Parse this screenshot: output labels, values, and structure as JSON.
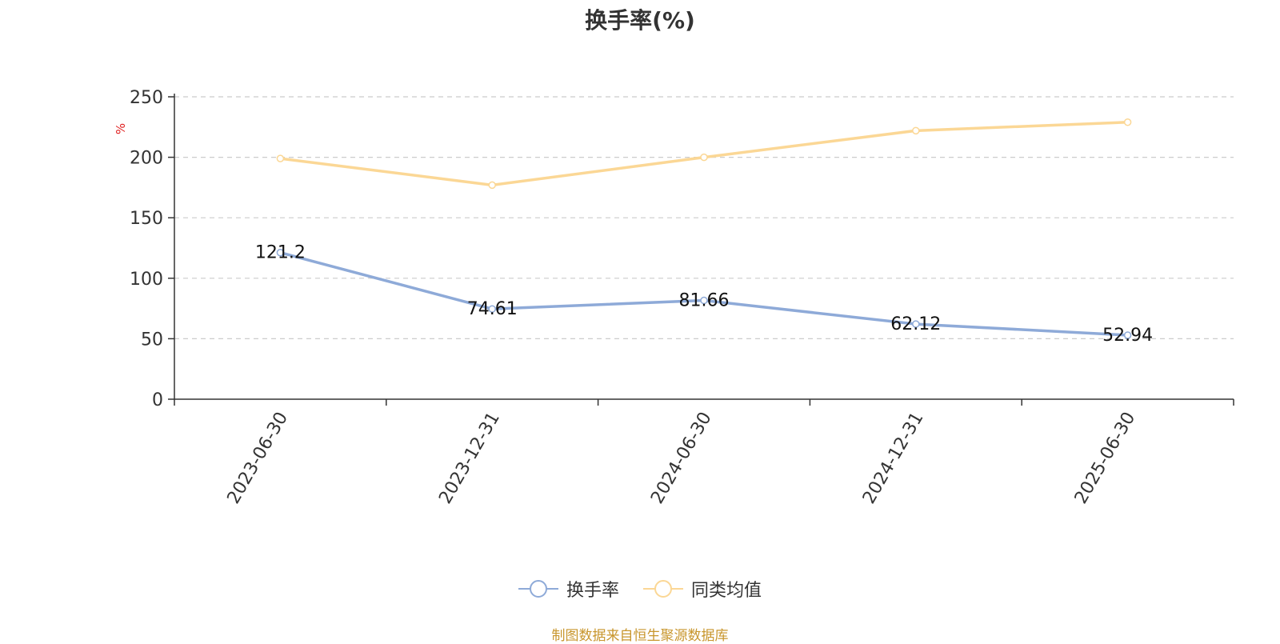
{
  "chart_data": {
    "type": "line",
    "title": "换手率(%)",
    "xlabel": "",
    "ylabel": "%",
    "categories": [
      "2023-06-30",
      "2023-12-31",
      "2024-06-30",
      "2024-12-31",
      "2025-06-30"
    ],
    "ylim": [
      0,
      250
    ],
    "yticks": [
      0,
      50,
      100,
      150,
      200,
      250
    ],
    "grid": true,
    "legend_position": "bottom-center",
    "series": [
      {
        "name": "换手率",
        "color": "#8eaad8",
        "values": [
          121.2,
          74.61,
          81.66,
          62.12,
          52.94
        ],
        "data_labels": [
          "121.2",
          "74.61",
          "81.66",
          "62.12",
          "52.94"
        ]
      },
      {
        "name": "同类均值",
        "color": "#fbd795",
        "values": [
          199,
          177,
          200,
          222,
          229
        ]
      }
    ]
  },
  "source_note": "制图数据来自恒生聚源数据库"
}
